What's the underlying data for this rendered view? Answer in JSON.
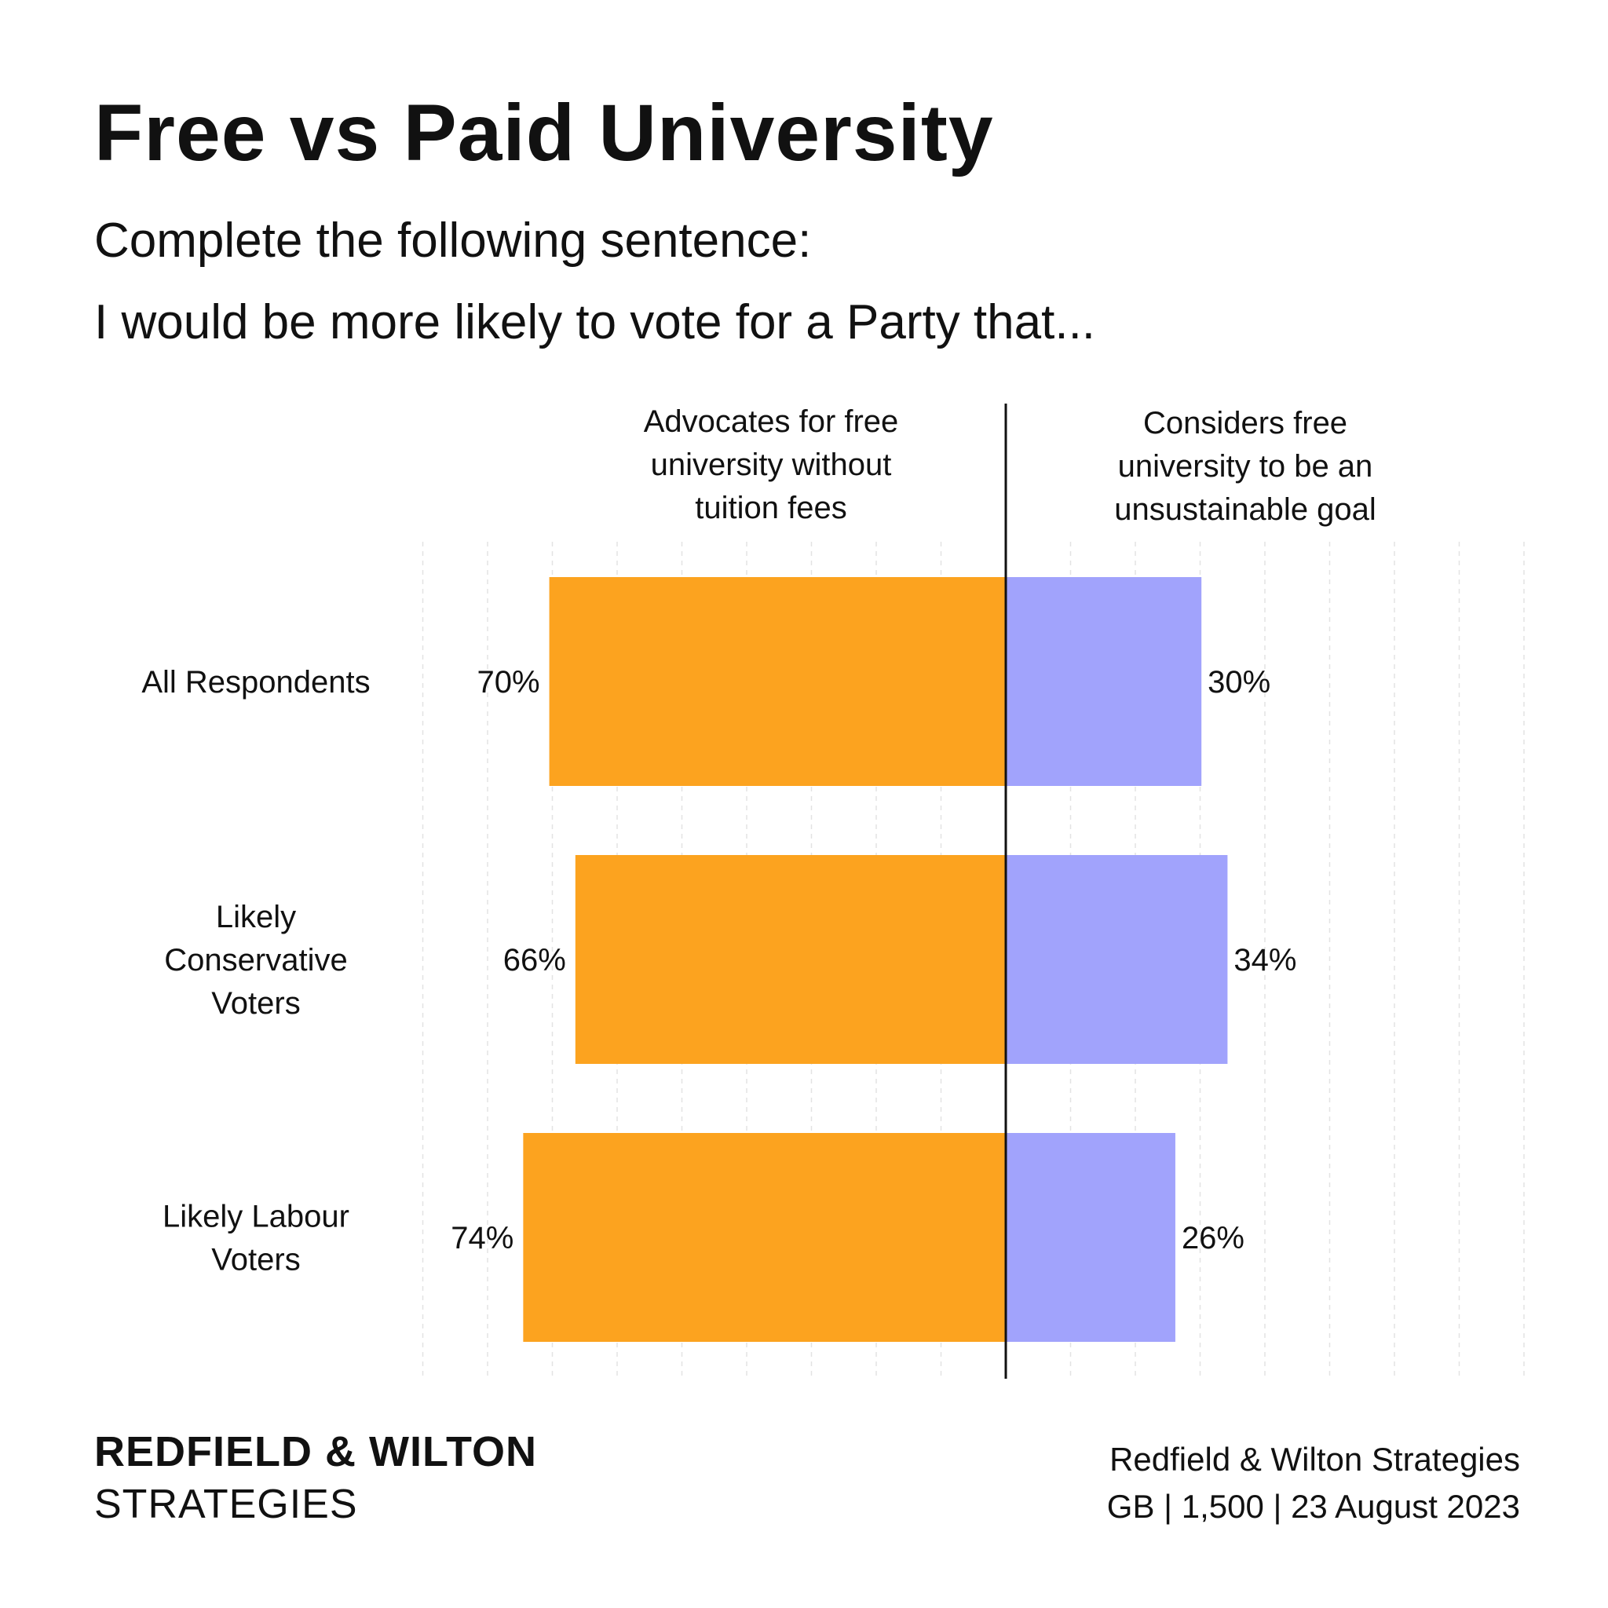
{
  "header": {
    "title": "Free vs Paid University",
    "subtitle_line1": "Complete the following sentence:",
    "subtitle_line2": "I would be more likely to vote for a Party that..."
  },
  "chart_data": {
    "type": "bar",
    "orientation": "horizontal-diverging",
    "categories": [
      [
        "All Respondents"
      ],
      [
        "Likely",
        "Conservative",
        "Voters"
      ],
      [
        "Likely Labour",
        "Voters"
      ]
    ],
    "series": [
      {
        "name": "Advocates for free university without tuition fees",
        "name_lines": [
          "Advocates for free",
          "university without",
          "tuition fees"
        ],
        "side": "left",
        "color": "#FCA31F",
        "values": [
          70,
          66,
          74
        ],
        "labels": [
          "70%",
          "66%",
          "74%"
        ]
      },
      {
        "name": "Considers free university to be an unsustainable goal",
        "name_lines": [
          "Considers free",
          "university to be an",
          "unsustainable goal"
        ],
        "side": "right",
        "color": "#A1A3FC",
        "values": [
          30,
          34,
          26
        ],
        "labels": [
          "30%",
          "34%",
          "26%"
        ]
      }
    ],
    "xlim": [
      -90,
      80
    ],
    "grid": true,
    "legend": "column headers above bars"
  },
  "footer": {
    "brand_line1": "REDFIELD & WILTON",
    "brand_line2": "STRATEGIES",
    "source_line1": "Redfield & Wilton Strategies",
    "source_line2": "GB | 1,500 | 23 August 2023"
  }
}
